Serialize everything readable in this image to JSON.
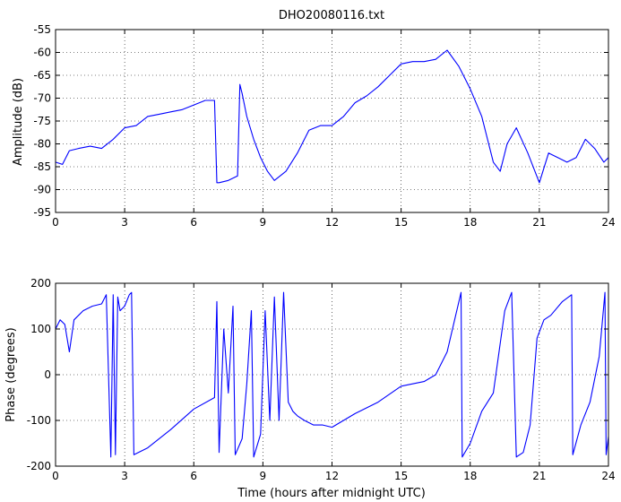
{
  "chart_data": [
    {
      "type": "line",
      "title": "DHO20080116.txt",
      "xlabel": "",
      "ylabel": "Amplitude (dB)",
      "xlim": [
        0,
        24
      ],
      "ylim": [
        -95,
        -55
      ],
      "xticks": [
        0,
        3,
        6,
        9,
        12,
        15,
        18,
        21,
        24
      ],
      "yticks": [
        -55,
        -60,
        -65,
        -70,
        -75,
        -80,
        -85,
        -90,
        -95
      ],
      "grid": true,
      "series_color": "#0000ff",
      "x": [
        0,
        0.3,
        0.6,
        1.0,
        1.5,
        2.0,
        2.5,
        3.0,
        3.5,
        4.0,
        4.5,
        5.0,
        5.5,
        6.0,
        6.5,
        6.9,
        7.0,
        7.1,
        7.5,
        7.9,
        8.0,
        8.1,
        8.3,
        8.6,
        8.9,
        9.2,
        9.5,
        10.0,
        10.5,
        11.0,
        11.5,
        12.0,
        12.5,
        13.0,
        13.5,
        14.0,
        14.5,
        15.0,
        15.5,
        16.0,
        16.5,
        17.0,
        17.5,
        18.0,
        18.5,
        19.0,
        19.3,
        19.6,
        20.0,
        20.5,
        21.0,
        21.4,
        21.8,
        22.2,
        22.6,
        23.0,
        23.4,
        23.8,
        24.0
      ],
      "y": [
        -84,
        -84.5,
        -81.5,
        -81,
        -80.5,
        -81,
        -79,
        -76.5,
        -76,
        -74,
        -73.5,
        -73,
        -72.5,
        -71.5,
        -70.5,
        -70.5,
        -88.5,
        -88.5,
        -88,
        -87,
        -67,
        -69,
        -74,
        -79,
        -83,
        -86,
        -88,
        -86,
        -82,
        -77,
        -76,
        -76,
        -74,
        -71,
        -69.5,
        -67.5,
        -65,
        -62.5,
        -62,
        -62,
        -61.5,
        -59.5,
        -63,
        -68,
        -74,
        -84,
        -86,
        -80,
        -76.5,
        -82,
        -88.5,
        -82,
        -83,
        -84,
        -83,
        -79,
        -81,
        -84,
        -83
      ]
    },
    {
      "type": "line",
      "title": "",
      "xlabel": "Time (hours after midnight UTC)",
      "ylabel": "Phase (degrees)",
      "xlim": [
        0,
        24
      ],
      "ylim": [
        -200,
        200
      ],
      "xticks": [
        0,
        3,
        6,
        9,
        12,
        15,
        18,
        21,
        24
      ],
      "yticks": [
        200,
        100,
        0,
        -100,
        -200
      ],
      "grid": true,
      "series_color": "#0000ff",
      "x": [
        0,
        0.2,
        0.4,
        0.6,
        0.8,
        1.2,
        1.6,
        2.0,
        2.2,
        2.4,
        2.5,
        2.6,
        2.7,
        2.8,
        3.0,
        3.2,
        3.3,
        3.4,
        4.0,
        5.0,
        6.0,
        6.9,
        7.0,
        7.1,
        7.3,
        7.5,
        7.7,
        7.8,
        8.1,
        8.3,
        8.5,
        8.6,
        8.9,
        9.1,
        9.3,
        9.5,
        9.7,
        9.9,
        10.1,
        10.3,
        10.5,
        10.8,
        11.2,
        11.6,
        12.0,
        12.5,
        13.0,
        14.0,
        15.0,
        16.0,
        16.5,
        17.0,
        17.6,
        17.65,
        18.0,
        18.5,
        19.0,
        19.5,
        19.8,
        20.0,
        20.3,
        20.6,
        20.9,
        21.2,
        21.5,
        22.0,
        22.4,
        22.45,
        22.8,
        23.2,
        23.6,
        23.85,
        23.9,
        24.0
      ],
      "y": [
        100,
        120,
        110,
        50,
        120,
        140,
        150,
        155,
        175,
        -180,
        175,
        -175,
        170,
        140,
        150,
        175,
        180,
        -175,
        -160,
        -120,
        -75,
        -50,
        160,
        -170,
        100,
        -40,
        150,
        -175,
        -140,
        -20,
        140,
        -180,
        -130,
        140,
        -100,
        170,
        -100,
        180,
        -60,
        -80,
        -90,
        -100,
        -110,
        -110,
        -115,
        -100,
        -85,
        -60,
        -25,
        -15,
        0,
        50,
        180,
        -180,
        -150,
        -80,
        -40,
        140,
        180,
        -180,
        -170,
        -110,
        80,
        120,
        130,
        160,
        175,
        -175,
        -110,
        -60,
        40,
        180,
        -175,
        -135
      ]
    }
  ]
}
